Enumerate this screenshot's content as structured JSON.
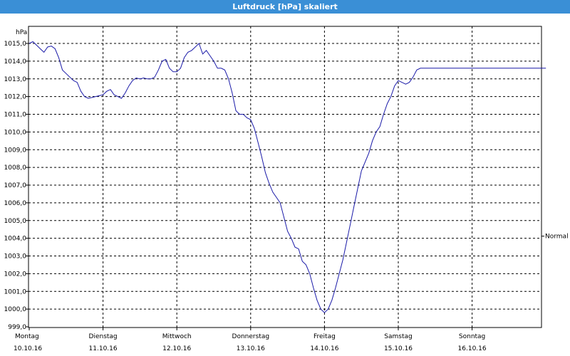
{
  "window": {
    "title": "Luftdruck [hPa] skaliert"
  },
  "chart_data": {
    "type": "line",
    "title": "Luftdruck [hPa] skaliert",
    "ylabel": "hPa",
    "xlabel": "",
    "ylim": [
      999.0,
      1015.0
    ],
    "ytick_step": 1.0,
    "grid": true,
    "grid_style": "dashed",
    "yticks": [
      "1015,0",
      "1014,0",
      "1013,0",
      "1012,0",
      "1011,0",
      "1010,0",
      "1009,0",
      "1008,0",
      "1007,0",
      "1006,0",
      "1005,0",
      "1004,0",
      "1003,0",
      "1002,0",
      "1001,0",
      "1000,0",
      "999,0"
    ],
    "days": [
      {
        "name": "Montag",
        "date": "10.10.16"
      },
      {
        "name": "Dienstag",
        "date": "11.10.16"
      },
      {
        "name": "Mittwoch",
        "date": "12.10.16"
      },
      {
        "name": "Donnerstag",
        "date": "13.10.16"
      },
      {
        "name": "Freitag",
        "date": "14.10.16"
      },
      {
        "name": "Samstag",
        "date": "15.10.16"
      },
      {
        "name": "Sonntag",
        "date": "16.10.16"
      }
    ],
    "xlim_days": [
      0,
      7
    ],
    "reference_level": {
      "label": "Normal",
      "value": 1004.6
    },
    "line_color": "#1a1aa8",
    "series": [
      {
        "x": [
          0,
          0.05,
          0.1,
          0.15,
          0.2,
          0.25,
          0.3,
          0.35,
          0.4,
          0.45,
          0.5,
          0.55,
          0.6,
          0.65,
          0.7,
          0.75,
          0.8,
          0.85,
          0.9,
          0.95,
          1.0,
          1.05,
          1.1,
          1.15,
          1.2,
          1.25,
          1.3,
          1.35,
          1.4,
          1.45,
          1.5,
          1.55,
          1.6,
          1.65,
          1.7,
          1.75,
          1.8,
          1.85,
          1.9,
          1.95,
          2.0,
          2.05,
          2.1,
          2.15,
          2.2,
          2.25,
          2.3,
          2.35,
          2.4,
          2.45,
          2.5,
          2.55,
          2.6,
          2.65,
          2.7,
          2.75,
          2.8,
          2.85,
          2.9,
          2.95,
          3.0,
          3.05,
          3.1,
          3.15,
          3.2,
          3.25,
          3.3,
          3.35,
          3.4,
          3.45,
          3.5,
          3.55,
          3.6,
          3.65,
          3.7,
          3.75,
          3.8,
          3.85,
          3.9,
          3.95,
          4.0,
          4.05,
          4.1,
          4.15,
          4.2,
          4.25,
          4.3,
          4.35,
          4.4,
          4.45,
          4.5,
          4.55,
          4.6,
          4.65,
          4.7,
          4.75,
          4.8,
          4.85,
          4.9,
          4.95,
          5.0,
          5.05,
          5.1,
          5.15,
          5.2,
          5.25,
          5.3,
          5.35,
          5.4,
          5.45,
          5.5,
          5.55,
          5.6,
          5.65,
          5.7,
          5.75,
          5.8,
          5.85,
          5.9,
          5.95,
          6.0,
          6.05,
          6.1,
          6.15,
          6.2,
          6.25,
          6.3,
          6.35,
          6.4,
          6.45,
          6.5,
          6.55,
          6.6,
          6.65,
          6.7,
          6.75,
          6.8,
          6.85,
          6.9,
          6.95,
          7.0
        ],
        "y": [
          1015.0,
          1015.1,
          1014.9,
          1014.7,
          1014.5,
          1014.8,
          1014.85,
          1014.7,
          1014.2,
          1013.5,
          1013.3,
          1013.1,
          1012.9,
          1012.8,
          1012.3,
          1012.0,
          1011.9,
          1011.95,
          1012.0,
          1012.05,
          1012.1,
          1012.3,
          1012.4,
          1012.1,
          1012.0,
          1011.9,
          1012.2,
          1012.6,
          1012.9,
          1013.05,
          1013.0,
          1013.05,
          1013.0,
          1013.0,
          1013.1,
          1013.5,
          1014.0,
          1014.1,
          1013.6,
          1013.4,
          1013.4,
          1013.6,
          1014.2,
          1014.5,
          1014.6,
          1014.8,
          1015.0,
          1014.4,
          1014.6,
          1014.3,
          1014.0,
          1013.6,
          1013.6,
          1013.5,
          1013.0,
          1012.2,
          1011.2,
          1011.0,
          1011.0,
          1010.8,
          1010.7,
          1010.2,
          1009.4,
          1008.6,
          1007.7,
          1007.1,
          1006.6,
          1006.3,
          1006.0,
          1005.2,
          1004.4,
          1004.0,
          1003.5,
          1003.4,
          1002.7,
          1002.5,
          1002.0,
          1001.2,
          1000.5,
          1000.0,
          999.8,
          1000.0,
          1000.5,
          1001.2,
          1002.0,
          1002.8,
          1003.8,
          1004.8,
          1005.8,
          1006.8,
          1007.8,
          1008.3,
          1008.8,
          1009.5,
          1010.0,
          1010.3,
          1011.0,
          1011.6,
          1012.0,
          1012.6,
          1012.9,
          1012.8,
          1012.7,
          1012.8,
          1013.1,
          1013.5,
          1013.6,
          1013.6,
          1013.6,
          1013.6,
          1013.6,
          1013.6,
          1013.6,
          1013.6,
          1013.6,
          1013.6,
          1013.6,
          1013.6,
          1013.6,
          1013.6,
          1013.6,
          1013.6,
          1013.6,
          1013.6,
          1013.6,
          1013.6,
          1013.6,
          1013.6,
          1013.6,
          1013.6,
          1013.6,
          1013.6,
          1013.6,
          1013.6,
          1013.6,
          1013.6,
          1013.6,
          1013.6,
          1013.6,
          1013.6,
          1013.6
        ]
      }
    ]
  }
}
